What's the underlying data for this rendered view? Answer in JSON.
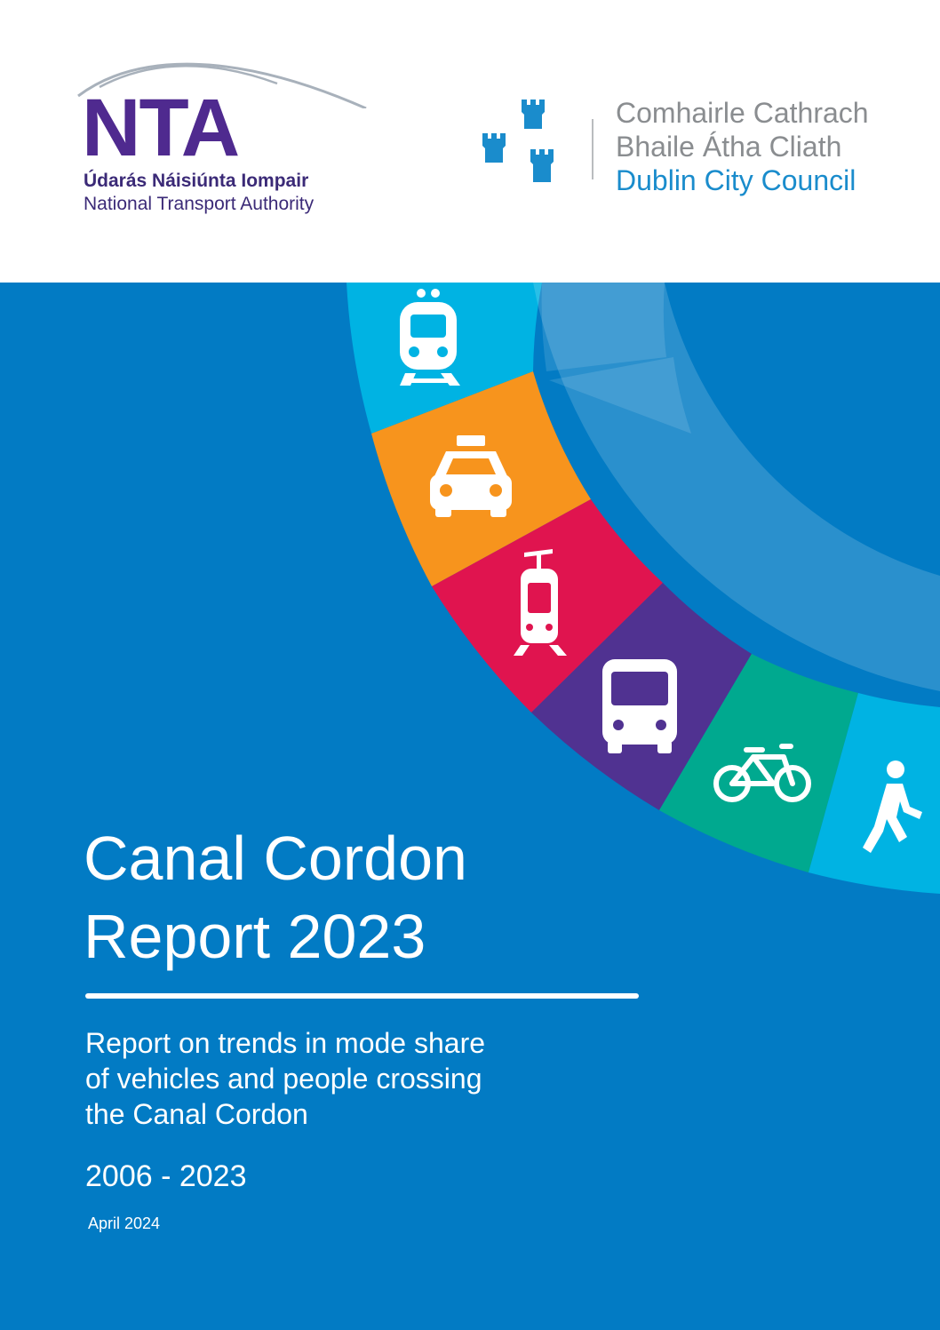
{
  "nta_logo": {
    "wordmark": "NTA",
    "name_irish": "Údarás Náisiúnta Iompair",
    "name_english": "National Transport Authority",
    "colors": {
      "wordmark": "#4f2a8f",
      "arc": "#a8b1bb"
    }
  },
  "dcc_logo": {
    "line_1": "Comhairle Cathrach",
    "line_2": "Bhaile Átha Cliath",
    "line_3": "Dublin City Council",
    "icon": "three-castles-icon",
    "colors": {
      "castles": "#1a8ccc",
      "irish_text": "#8a8d90",
      "english_text": "#1a8ccc"
    }
  },
  "cover": {
    "title_line_1": "Canal Cordon",
    "title_line_2": "Report 2023",
    "subtitle_line_1": "Report on trends in mode share",
    "subtitle_line_2": "of vehicles and people crossing",
    "subtitle_line_3": "the Canal Cordon",
    "year_range": "2006 - 2023",
    "date": "April 2024",
    "background_color": "#027bc4"
  },
  "mode_ring": {
    "segments": [
      {
        "mode": "train",
        "icon": "train-icon",
        "color": "#00b3e3"
      },
      {
        "mode": "taxi",
        "icon": "taxi-icon",
        "color": "#f7941d"
      },
      {
        "mode": "tram",
        "icon": "tram-icon",
        "color": "#e0144f"
      },
      {
        "mode": "bus",
        "icon": "bus-icon",
        "color": "#503291"
      },
      {
        "mode": "cycle",
        "icon": "bicycle-icon",
        "color": "#00a98f"
      },
      {
        "mode": "walk",
        "icon": "pedestrian-icon",
        "color": "#00b3e3"
      }
    ]
  }
}
